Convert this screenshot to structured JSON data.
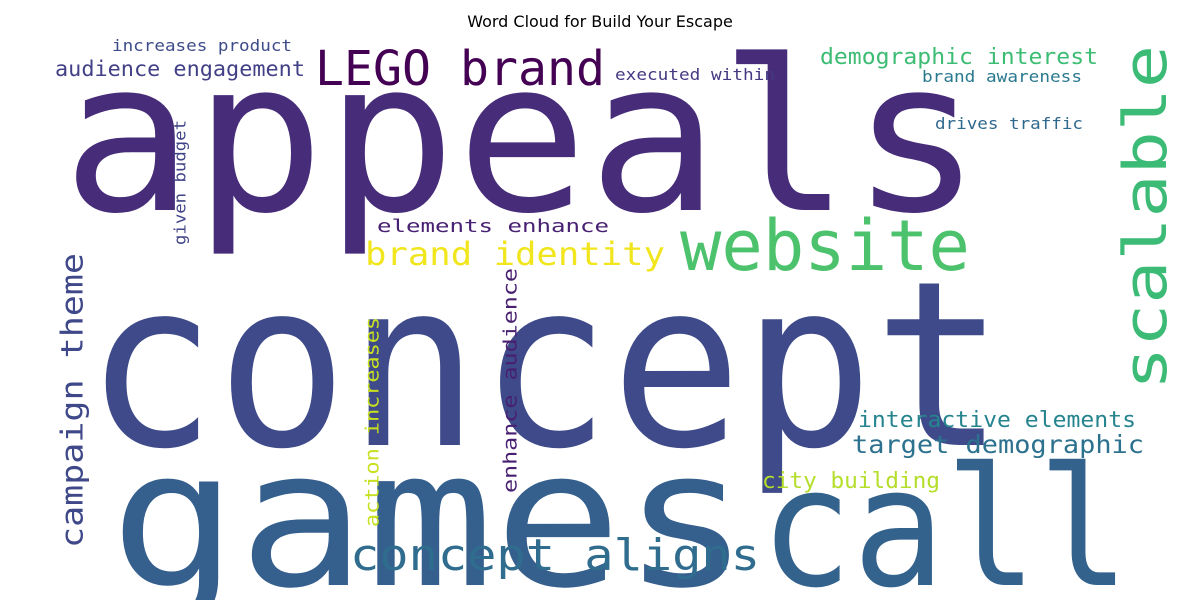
{
  "title": "Word Cloud for Build Your Escape",
  "colors": {
    "background": "#ffffff",
    "title": "#000000",
    "palette": [
      "#440154",
      "#482777",
      "#3f4a8a",
      "#31678e",
      "#26838f",
      "#1f9d8a",
      "#35b779",
      "#6cce5a",
      "#b6de2b",
      "#fde725"
    ]
  },
  "words": [
    {
      "text": "appeals",
      "color": "#472c7a"
    },
    {
      "text": "concept",
      "color": "#3e4a89"
    },
    {
      "text": "games",
      "color": "#355f8d"
    },
    {
      "text": "call",
      "color": "#33628d"
    },
    {
      "text": "website",
      "color": "#4cc26c"
    },
    {
      "text": "scalable",
      "color": "#3bbb75"
    },
    {
      "text": "LEGO brand",
      "color": "#440154"
    },
    {
      "text": "brand identity",
      "color": "#f1e51d"
    },
    {
      "text": "concept aligns",
      "color": "#2f6c8e"
    },
    {
      "text": "campaign theme",
      "color": "#3f4889"
    },
    {
      "text": "demographic interest",
      "color": "#3dbc74"
    },
    {
      "text": "audience engagement",
      "color": "#424086"
    },
    {
      "text": "increases product",
      "color": "#3e4c8a"
    },
    {
      "text": "executed within",
      "color": "#443983"
    },
    {
      "text": "brand awareness",
      "color": "#29798e"
    },
    {
      "text": "drives traffic",
      "color": "#30698e"
    },
    {
      "text": "given budget",
      "color": "#414487"
    },
    {
      "text": "elements enhance",
      "color": "#482173"
    },
    {
      "text": "interactive elements",
      "color": "#25848e"
    },
    {
      "text": "target demographic",
      "color": "#2c718e"
    },
    {
      "text": "city building",
      "color": "#b5de2b"
    },
    {
      "text": "action increases",
      "color": "#c8e020"
    },
    {
      "text": "enhance audience",
      "color": "#481f71"
    }
  ]
}
